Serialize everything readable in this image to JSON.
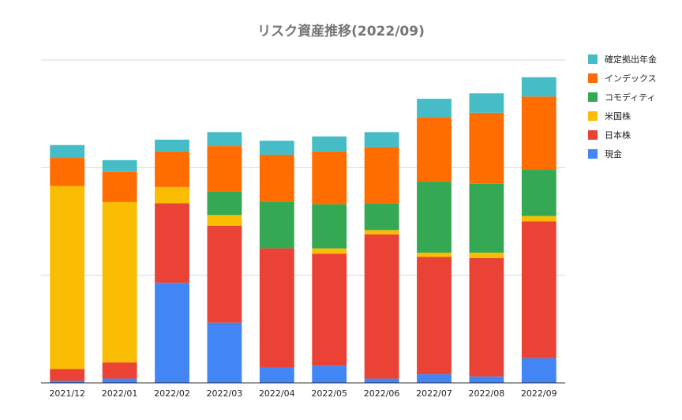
{
  "chart_data": {
    "type": "bar",
    "stacked": true,
    "title": "リスク資産推移(2022/09)",
    "xlabel": "",
    "ylabel": "",
    "ylim": [
      0,
      3
    ],
    "y_gridlines": [
      0,
      1,
      2,
      3
    ],
    "y_tick_labels_shown": false,
    "grid": true,
    "legend_position": "right",
    "categories": [
      "2021/12",
      "2022/01",
      "2022/02",
      "2022/03",
      "2022/04",
      "2022/05",
      "2022/06",
      "2022/07",
      "2022/08",
      "2022/09"
    ],
    "series": [
      {
        "name": "現金",
        "color": "#4285f4",
        "values": [
          0.02,
          0.04,
          0.93,
          0.56,
          0.14,
          0.16,
          0.04,
          0.08,
          0.06,
          0.23
        ]
      },
      {
        "name": "日本株",
        "color": "#ea4335",
        "values": [
          0.11,
          0.15,
          0.74,
          0.9,
          1.11,
          1.04,
          1.34,
          1.09,
          1.1,
          1.27
        ]
      },
      {
        "name": "米国株",
        "color": "#fbbc04",
        "values": [
          1.7,
          1.49,
          0.15,
          0.1,
          0,
          0.05,
          0.04,
          0.04,
          0.05,
          0.05
        ]
      },
      {
        "name": "コモディティ",
        "color": "#34a853",
        "values": [
          0,
          0,
          0,
          0.22,
          0.43,
          0.41,
          0.25,
          0.66,
          0.64,
          0.43
        ]
      },
      {
        "name": "インデックス",
        "color": "#ff6d01",
        "values": [
          0.26,
          0.28,
          0.33,
          0.42,
          0.44,
          0.49,
          0.52,
          0.6,
          0.66,
          0.68
        ]
      },
      {
        "name": "確定拠出年金",
        "color": "#46bdc6",
        "values": [
          0.12,
          0.11,
          0.11,
          0.13,
          0.13,
          0.14,
          0.14,
          0.17,
          0.18,
          0.18
        ]
      }
    ],
    "legend_order": [
      "確定拠出年金",
      "インデックス",
      "コモディティ",
      "米国株",
      "日本株",
      "現金"
    ]
  }
}
